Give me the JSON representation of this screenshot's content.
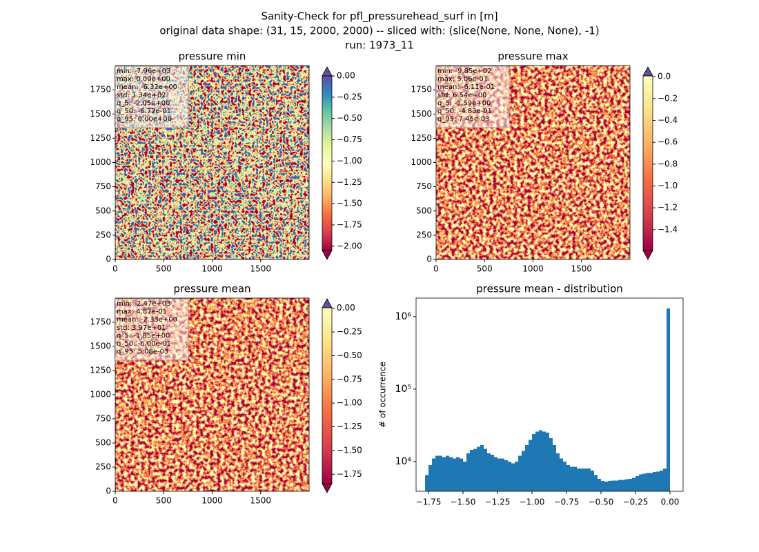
{
  "suptitle": [
    "Sanity-Check for pfl_pressurehead_surf in [m]",
    "original data shape: (31, 15, 2000, 2000) -- sliced with: (slice(None, None, None), -1)",
    "run: 1973_11"
  ],
  "chart_data": [
    {
      "type": "heatmap",
      "title": "pressure min",
      "xlim": [
        0,
        2000
      ],
      "xticks": [
        0,
        500,
        1000,
        1500
      ],
      "ylim": [
        0,
        2000
      ],
      "yticks": [
        0,
        250,
        500,
        750,
        1000,
        1250,
        1500,
        1750
      ],
      "stats": [
        "min: -7.96e+03",
        "max: 0.00e+00",
        "mean: -6.32e+00",
        "std: 1.34e+02",
        "q_5: -2.05e+00",
        "q_50: -6.72e-01",
        "q_95: 0.00e+00"
      ],
      "clim": [
        -2.05,
        0.0
      ],
      "cticks": [
        {
          "value": 0,
          "label": "0.00"
        },
        {
          "value": -0.25,
          "label": "−0.25"
        },
        {
          "value": -0.5,
          "label": "−0.50"
        },
        {
          "value": -0.75,
          "label": "−0.75"
        },
        {
          "value": -1,
          "label": "−1.00"
        },
        {
          "value": -1.25,
          "label": "−1.25"
        },
        {
          "value": -1.5,
          "label": "−1.50"
        },
        {
          "value": -1.75,
          "label": "−1.75"
        },
        {
          "value": -2,
          "label": "−2.00"
        }
      ],
      "colormap": [
        "#5e4fa2",
        "#3288bd",
        "#66c2a5",
        "#abdda4",
        "#e6f598",
        "#ffffbf",
        "#fee08b",
        "#fdae61",
        "#f46d43",
        "#d53e4f",
        "#9e0142"
      ],
      "extend_colors": [
        "#5e4fa2",
        "#9e0142"
      ]
    },
    {
      "type": "heatmap",
      "title": "pressure max",
      "xlim": [
        0,
        2000
      ],
      "xticks": [
        0,
        500,
        1000,
        1500
      ],
      "ylim": [
        0,
        2000
      ],
      "yticks": [
        0,
        250,
        500,
        750,
        1000,
        1250,
        1500,
        1750
      ],
      "stats": [
        "min: -9.85e+02",
        "max: 5.06e-01",
        "mean: -6.11e-01",
        "std: 6.54e+00",
        "q_5: -1.59e+00",
        "q_50: -4.83e-01",
        "q_95: 7.45e-03"
      ],
      "clim": [
        -1.59,
        0.00745
      ],
      "cticks": [
        {
          "value": 0,
          "label": "0.0"
        },
        {
          "value": -0.2,
          "label": "−0.2"
        },
        {
          "value": -0.4,
          "label": "−0.4"
        },
        {
          "value": -0.6,
          "label": "−0.6"
        },
        {
          "value": -0.8,
          "label": "−0.8"
        },
        {
          "value": -1,
          "label": "−1.0"
        },
        {
          "value": -1.2,
          "label": "−1.2"
        },
        {
          "value": -1.4,
          "label": "−1.4"
        }
      ],
      "colormap": [
        "#ffffbf",
        "#fee08b",
        "#fdae61",
        "#f46d43",
        "#d53e4f",
        "#9e0142"
      ],
      "extend_colors": [
        "#5e4fa2",
        "#9e0142"
      ]
    },
    {
      "type": "heatmap",
      "title": "pressure mean",
      "xlim": [
        0,
        2000
      ],
      "xticks": [
        0,
        500,
        1000,
        1500
      ],
      "ylim": [
        0,
        2000
      ],
      "yticks": [
        0,
        250,
        500,
        750,
        1000,
        1250,
        1500,
        1750
      ],
      "stats": [
        "min: -2.47e+03",
        "max: 4.87e-01",
        "mean: -2.33e+00",
        "std: 3.97e+01",
        "q_5: -1.85e+00",
        "q_50: -6.00e-01",
        "q_95: 5.08e-03"
      ],
      "clim": [
        -1.85,
        0.00508
      ],
      "cticks": [
        {
          "value": 0,
          "label": "0.00"
        },
        {
          "value": -0.25,
          "label": "−0.25"
        },
        {
          "value": -0.5,
          "label": "−0.50"
        },
        {
          "value": -0.75,
          "label": "−0.75"
        },
        {
          "value": -1,
          "label": "−1.00"
        },
        {
          "value": -1.25,
          "label": "−1.25"
        },
        {
          "value": -1.5,
          "label": "−1.50"
        },
        {
          "value": -1.75,
          "label": "−1.75"
        }
      ],
      "colormap": [
        "#ffffbf",
        "#fee08b",
        "#fdae61",
        "#f46d43",
        "#d53e4f",
        "#9e0142"
      ],
      "extend_colors": [
        "#5e4fa2",
        "#9e0142"
      ]
    },
    {
      "type": "histogram",
      "title": "pressure mean - distribution",
      "y_label": "# of occurrence",
      "color": "#1f77b4",
      "yscale": "log",
      "xlim": [
        -1.84,
        0.095
      ],
      "xticks": [
        {
          "value": -1.75,
          "label": "−1.75"
        },
        {
          "value": -1.5,
          "label": "−1.50"
        },
        {
          "value": -1.25,
          "label": "−1.25"
        },
        {
          "value": -1,
          "label": "−1.00"
        },
        {
          "value": -0.75,
          "label": "−0.75"
        },
        {
          "value": -0.5,
          "label": "−0.50"
        },
        {
          "value": -0.25,
          "label": "−0.25"
        },
        {
          "value": 0,
          "label": "0.00"
        }
      ],
      "ylim": [
        3900,
        1800000
      ],
      "yticks": [
        {
          "value": 10000,
          "label": "10⁴"
        },
        {
          "value": 100000,
          "label": "10⁵"
        },
        {
          "value": 1000000,
          "label": "10⁶"
        }
      ],
      "bins": [
        -1.775,
        -1.75,
        -1.725,
        -1.7,
        -1.675,
        -1.65,
        -1.625,
        -1.6,
        -1.575,
        -1.55,
        -1.525,
        -1.5,
        -1.475,
        -1.45,
        -1.425,
        -1.4,
        -1.375,
        -1.35,
        -1.325,
        -1.3,
        -1.275,
        -1.25,
        -1.225,
        -1.2,
        -1.175,
        -1.15,
        -1.125,
        -1.1,
        -1.075,
        -1.05,
        -1.025,
        -1.0,
        -0.975,
        -0.95,
        -0.925,
        -0.9,
        -0.875,
        -0.85,
        -0.825,
        -0.8,
        -0.775,
        -0.75,
        -0.725,
        -0.7,
        -0.675,
        -0.65,
        -0.625,
        -0.6,
        -0.575,
        -0.55,
        -0.525,
        -0.5,
        -0.475,
        -0.45,
        -0.425,
        -0.4,
        -0.375,
        -0.35,
        -0.325,
        -0.3,
        -0.275,
        -0.25,
        -0.225,
        -0.2,
        -0.175,
        -0.15,
        -0.125,
        -0.1,
        -0.075,
        -0.05,
        -0.025,
        0.0
      ],
      "values": [
        6500,
        9000,
        11000,
        12000,
        12000,
        11500,
        12000,
        11500,
        11000,
        11500,
        11000,
        10000,
        13000,
        14500,
        15000,
        16000,
        17000,
        15000,
        13000,
        12500,
        11500,
        11000,
        11000,
        10500,
        10000,
        9500,
        10000,
        12000,
        14000,
        17000,
        20000,
        24000,
        26000,
        27000,
        26000,
        25000,
        21000,
        17000,
        13000,
        11000,
        10000,
        9000,
        8500,
        8500,
        8000,
        8000,
        8000,
        8000,
        7500,
        6500,
        5800,
        5400,
        5300,
        5400,
        5500,
        5500,
        5600,
        5600,
        5700,
        5800,
        6000,
        6300,
        6700,
        6800,
        7000,
        7000,
        7200,
        7300,
        7500,
        8000,
        1300000
      ]
    }
  ]
}
